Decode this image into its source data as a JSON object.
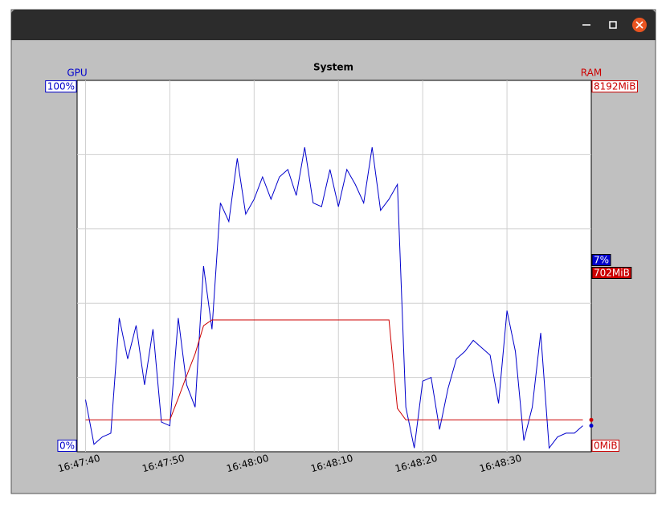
{
  "chart_data": {
    "type": "line",
    "title": "System",
    "x": [
      "16:47:40",
      "16:47:41",
      "16:47:42",
      "16:47:43",
      "16:47:44",
      "16:47:45",
      "16:47:46",
      "16:47:47",
      "16:47:48",
      "16:47:49",
      "16:47:50",
      "16:47:51",
      "16:47:52",
      "16:47:53",
      "16:47:54",
      "16:47:55",
      "16:47:56",
      "16:47:57",
      "16:47:58",
      "16:47:59",
      "16:48:00",
      "16:48:01",
      "16:48:02",
      "16:48:03",
      "16:48:04",
      "16:48:05",
      "16:48:06",
      "16:48:07",
      "16:48:08",
      "16:48:09",
      "16:48:10",
      "16:48:11",
      "16:48:12",
      "16:48:13",
      "16:48:14",
      "16:48:15",
      "16:48:16",
      "16:48:17",
      "16:48:18",
      "16:48:19",
      "16:48:20",
      "16:48:21",
      "16:48:22",
      "16:48:23",
      "16:48:24",
      "16:48:25",
      "16:48:26",
      "16:48:27",
      "16:48:28",
      "16:48:29",
      "16:48:30",
      "16:48:31",
      "16:48:32",
      "16:48:33",
      "16:48:34",
      "16:48:35",
      "16:48:36",
      "16:48:37",
      "16:48:38",
      "16:48:39"
    ],
    "series": [
      {
        "name": "GPU",
        "color": "#0000cc",
        "axis": "y",
        "values": [
          14,
          2,
          4,
          5,
          36,
          25,
          34,
          18,
          33,
          8,
          7,
          36,
          18,
          12,
          50,
          33,
          67,
          62,
          79,
          64,
          68,
          74,
          68,
          74,
          76,
          69,
          82,
          67,
          66,
          76,
          66,
          76,
          72,
          67,
          82,
          65,
          68,
          72,
          12,
          1,
          19,
          20,
          6,
          17,
          25,
          27,
          30,
          28,
          26,
          13,
          38,
          27,
          3,
          12,
          32,
          1,
          4,
          5,
          5,
          7
        ],
        "value_labels": [
          null,
          null,
          null,
          null,
          null,
          null,
          null,
          null,
          null,
          null,
          null,
          null,
          null,
          null,
          null,
          null,
          null,
          null,
          null,
          null,
          null,
          null,
          null,
          null,
          null,
          null,
          null,
          null,
          null,
          null,
          null,
          null,
          null,
          null,
          null,
          null,
          null,
          null,
          null,
          null,
          null,
          null,
          null,
          null,
          null,
          null,
          null,
          null,
          null,
          null,
          null,
          null,
          null,
          null,
          null,
          null,
          null,
          null,
          null,
          "7%"
        ]
      },
      {
        "name": "RAM",
        "color": "#cc0000",
        "axis": "y2",
        "values": [
          702,
          702,
          702,
          702,
          702,
          702,
          702,
          702,
          702,
          702,
          702,
          1180,
          1680,
          2160,
          2780,
          2908,
          2908,
          2908,
          2908,
          2908,
          2908,
          2908,
          2908,
          2908,
          2908,
          2908,
          2908,
          2908,
          2908,
          2908,
          2908,
          2908,
          2908,
          2908,
          2908,
          2908,
          2908,
          957,
          702,
          702,
          702,
          702,
          702,
          702,
          702,
          702,
          702,
          702,
          702,
          702,
          702,
          702,
          702,
          702,
          702,
          702,
          702,
          702,
          702,
          702
        ],
        "value_labels": [
          null,
          null,
          null,
          null,
          null,
          null,
          null,
          null,
          null,
          null,
          null,
          null,
          null,
          null,
          null,
          null,
          null,
          null,
          null,
          null,
          null,
          null,
          null,
          null,
          null,
          null,
          null,
          null,
          null,
          null,
          null,
          null,
          null,
          null,
          null,
          null,
          null,
          null,
          null,
          null,
          null,
          null,
          null,
          null,
          null,
          null,
          null,
          null,
          null,
          null,
          null,
          null,
          null,
          null,
          null,
          null,
          null,
          null,
          null,
          "702MiB"
        ]
      }
    ],
    "xlim": [
      "16:47:39",
      "16:48:40"
    ],
    "xticks": [
      "16:47:40",
      "16:47:50",
      "16:48:00",
      "16:48:10",
      "16:48:20",
      "16:48:30"
    ],
    "ylim": [
      0,
      100
    ],
    "yticks": [
      {
        "value": 0,
        "label": "0%"
      },
      {
        "value": 100,
        "label": "100%"
      }
    ],
    "ygrid": [
      20,
      40,
      60,
      80
    ],
    "y2lim": [
      0,
      8192
    ],
    "y2ticks": [
      {
        "value": 0,
        "label": "0MiB"
      },
      {
        "value": 8192,
        "label": "8192MiB"
      }
    ],
    "grid": true
  }
}
